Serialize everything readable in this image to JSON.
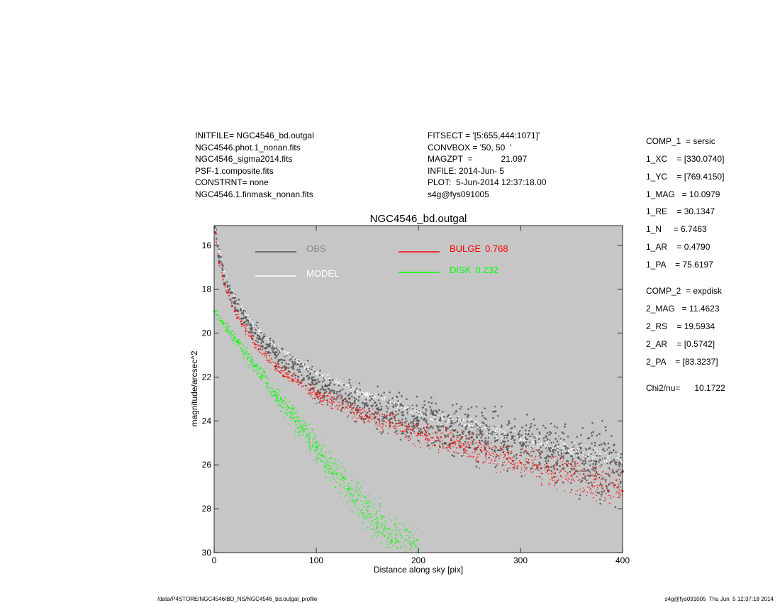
{
  "header": {
    "left_lines": [
      "INITFILE= NGC4546_bd.outgal",
      "NGC4546.phot.1_nonan.fits",
      "NGC4546_sigma2014.fits",
      "PSF-1.composite.fits",
      "CONSTRNT= none",
      "NGC4546.1.finmask_nonan.fits"
    ],
    "mid_lines": [
      "FITSECT = '[5:655,444:1071]'",
      "CONVBOX = '50, 50  '",
      "MAGZPT  =            21.097",
      "INFILE: 2014-Jun- 5",
      "PLOT:  5-Jun-2014 12:37:18.00",
      "s4g@fys091005"
    ]
  },
  "components": [
    "COMP_1  = sersic",
    "1_XC    = [330.0740]",
    "1_YC    = [769.4150]",
    "1_MAG   = 10.0979",
    "1_RE    = 30.1347",
    "1_N     = 6.7463",
    "1_AR    = 0.4790",
    "1_PA    = 75.6197",
    "COMP_2  = expdisk",
    "2_MAG   = 11.4623",
    "2_RS    = 19.5934",
    "2_AR    = [0.5742]",
    "2_PA    = [83.3237]",
    "Chi2/nu=      10.1722"
  ],
  "footer": {
    "left": "/data/P4STORE/NGC4546/BD_NS/NGC4546_bd.outgal_profile",
    "right": "s4g@fys091005  Thu Jun  5 12:37:18 2014"
  },
  "colors": {
    "plot_background": "#c6c6c6",
    "obs": "#555555",
    "model": "#ffffff",
    "bulge": "#ff0000",
    "disk": "#00ff00",
    "legend_obs_text": "#8c8c8c"
  },
  "chart_data": {
    "type": "scatter",
    "title": "NGC4546_bd.outgal",
    "xlabel": "Distance along sky [pix]",
    "ylabel": "magnitude/arcsec^2",
    "xlim": [
      0,
      400
    ],
    "ylim": [
      30,
      15.1
    ],
    "y_inverted": true,
    "x_ticks": [
      0,
      100,
      200,
      300,
      400
    ],
    "y_ticks": [
      16,
      18,
      20,
      22,
      24,
      26,
      28,
      30
    ],
    "grid": false,
    "legend_placement": "top",
    "series": [
      {
        "name": "OBS",
        "color": "#555555",
        "x": [
          1,
          5,
          10,
          20,
          40,
          60,
          100,
          150,
          200,
          250,
          300,
          350,
          400
        ],
        "y": [
          15.3,
          16.5,
          17.4,
          18.6,
          20.0,
          21.0,
          22.3,
          23.3,
          24.0,
          24.5,
          25.0,
          25.6,
          26.3
        ]
      },
      {
        "name": "MODEL",
        "color": "#ffffff",
        "x": [
          1,
          5,
          10,
          20,
          40,
          60,
          100,
          150,
          200,
          250,
          300,
          350,
          400
        ],
        "y": [
          15.3,
          16.3,
          17.2,
          18.3,
          19.7,
          20.6,
          21.8,
          22.8,
          23.6,
          24.2,
          24.8,
          25.3,
          25.9
        ]
      },
      {
        "name": "BULGE",
        "label_value": "0.768",
        "color": "#ff0000",
        "x": [
          1,
          5,
          10,
          20,
          40,
          60,
          100,
          150,
          200,
          250,
          300,
          350,
          400
        ],
        "y": [
          15.4,
          16.8,
          17.8,
          19.0,
          20.5,
          21.5,
          22.8,
          23.8,
          24.6,
          25.2,
          25.9,
          26.5,
          27.2
        ]
      },
      {
        "name": "DISK",
        "label_value": "0.232",
        "color": "#00ff00",
        "x": [
          0,
          20,
          40,
          60,
          80,
          100,
          120,
          140,
          160,
          180,
          200
        ],
        "y": [
          19.0,
          20.2,
          21.5,
          22.8,
          24.0,
          25.2,
          26.4,
          27.6,
          28.6,
          29.5,
          30.0
        ]
      }
    ]
  }
}
